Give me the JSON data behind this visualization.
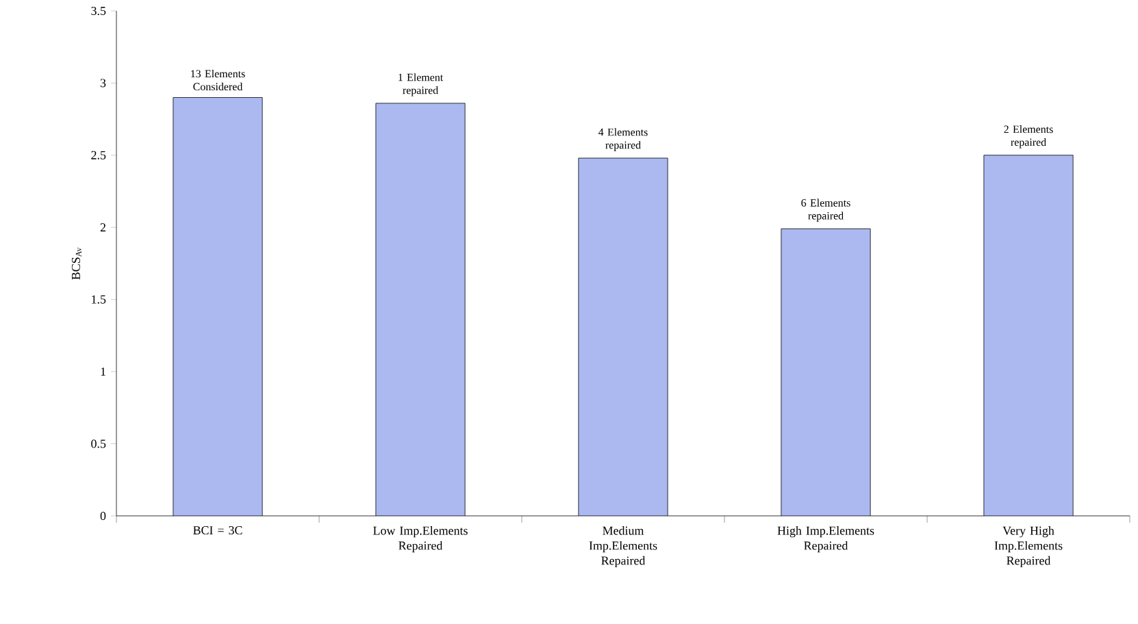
{
  "chart_data": {
    "type": "bar",
    "ylabel": "BCS$_{Av}$",
    "categories": [
      "BCI = 3C",
      "Low Imp.Elements Repaired",
      "Medium Imp.Elements Repaired",
      "High Imp.Elements Repaired",
      "Very High Imp.Elements Repaired"
    ],
    "values": [
      2.9,
      2.86,
      2.48,
      1.99,
      2.5
    ],
    "color": "#abb9f0",
    "ylim": [
      0,
      3.5
    ],
    "yticks": [
      0,
      0.5,
      1,
      1.5,
      2,
      2.5,
      3,
      3.5
    ],
    "annotations": [
      {
        "text": "13 Elements Considered",
        "x": "BCI = 3C",
        "y": 2.9
      },
      {
        "text": "1 Element repaired",
        "x": "Low Imp.Elements Repaired",
        "y": 2.86
      },
      {
        "text": "4 Elements repaired",
        "x": "Medium Imp.Elements Repaired",
        "y": 2.48
      },
      {
        "text": "6 Elements repaired",
        "x": "High Imp.Elements Repaired",
        "y": 1.99
      },
      {
        "text": "2 Elements repaired",
        "x": "Very High Imp.Elements Repaired",
        "y": 2.5
      }
    ]
  }
}
